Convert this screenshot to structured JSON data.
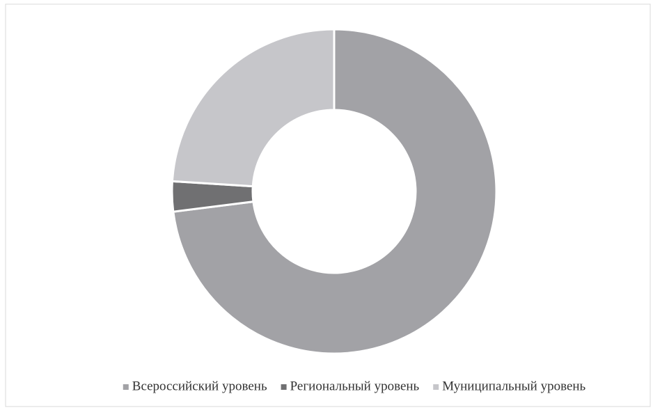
{
  "chart_data": {
    "type": "donut",
    "categories": [
      "Всероссийский уровень",
      "Региональный уровень",
      "Муниципальный уровень"
    ],
    "values": [
      73,
      3,
      24
    ],
    "colors": [
      "#a2a2a6",
      "#707072",
      "#c6c6ca"
    ],
    "legend": "bottom"
  }
}
